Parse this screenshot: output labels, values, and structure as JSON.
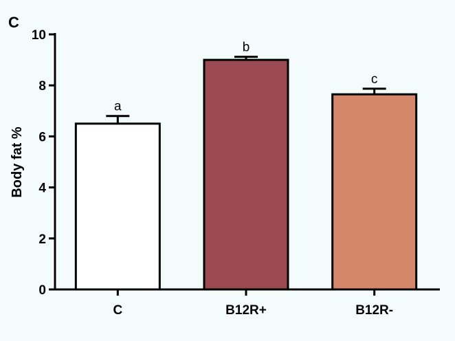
{
  "panel_label": "C",
  "chart_data": {
    "type": "bar",
    "title": "",
    "xlabel": "",
    "ylabel": "Body fat %",
    "ylim": [
      0,
      10
    ],
    "yticks": [
      0,
      2,
      4,
      6,
      8,
      10
    ],
    "categories": [
      "C",
      "B12R+",
      "B12R-"
    ],
    "values": [
      6.5,
      9.0,
      7.65
    ],
    "errors": [
      0.3,
      0.12,
      0.22
    ],
    "significance": [
      "a",
      "b",
      "c"
    ],
    "colors": [
      "#ffffff",
      "#9b4a52",
      "#d4876a"
    ],
    "grid": false,
    "legend": "none"
  }
}
